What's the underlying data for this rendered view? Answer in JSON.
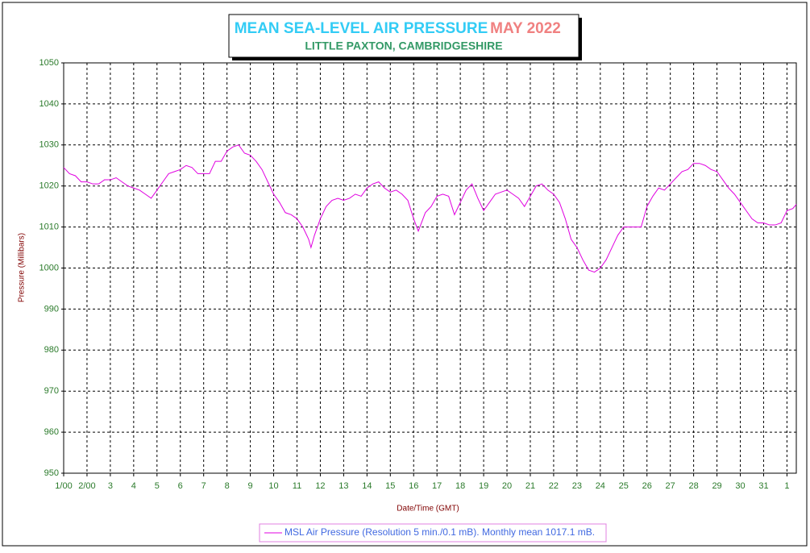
{
  "chart_data": {
    "type": "line",
    "title": "MEAN SEA-LEVEL AIR PRESSURE",
    "title_date": "MAY 2022",
    "subtitle": "LITTLE PAXTON, CAMBRIDGESHIRE",
    "x_label": "Date/Time (GMT)",
    "y_label": "Pressure (Millibars)",
    "grid": true,
    "legend": "bottom",
    "xlim": [
      0,
      31.4
    ],
    "ylim": [
      950,
      1050
    ],
    "yticks": [
      950,
      960,
      970,
      980,
      990,
      1000,
      1010,
      1020,
      1030,
      1040,
      1050
    ],
    "xticks": [
      {
        "value": 0,
        "label": "1/00"
      },
      {
        "value": 1,
        "label": "2/00"
      },
      {
        "value": 2,
        "label": "3"
      },
      {
        "value": 3,
        "label": "4"
      },
      {
        "value": 4,
        "label": "5"
      },
      {
        "value": 5,
        "label": "6"
      },
      {
        "value": 6,
        "label": "7"
      },
      {
        "value": 7,
        "label": "8"
      },
      {
        "value": 8,
        "label": "9"
      },
      {
        "value": 9,
        "label": "10"
      },
      {
        "value": 10,
        "label": "11"
      },
      {
        "value": 11,
        "label": "12"
      },
      {
        "value": 12,
        "label": "13"
      },
      {
        "value": 13,
        "label": "14"
      },
      {
        "value": 14,
        "label": "15"
      },
      {
        "value": 15,
        "label": "16"
      },
      {
        "value": 16,
        "label": "17"
      },
      {
        "value": 17,
        "label": "18"
      },
      {
        "value": 18,
        "label": "19"
      },
      {
        "value": 19,
        "label": "20"
      },
      {
        "value": 20,
        "label": "21"
      },
      {
        "value": 21,
        "label": "22"
      },
      {
        "value": 22,
        "label": "23"
      },
      {
        "value": 23,
        "label": "24"
      },
      {
        "value": 24,
        "label": "25"
      },
      {
        "value": 25,
        "label": "26"
      },
      {
        "value": 26,
        "label": "27"
      },
      {
        "value": 27,
        "label": "28"
      },
      {
        "value": 28,
        "label": "29"
      },
      {
        "value": 29,
        "label": "30"
      },
      {
        "value": 30,
        "label": "31"
      },
      {
        "value": 31,
        "label": "1"
      }
    ],
    "x": [
      0,
      0.25,
      0.5,
      0.75,
      1,
      1.25,
      1.5,
      1.75,
      2,
      2.25,
      2.5,
      2.75,
      3,
      3.25,
      3.5,
      3.75,
      4,
      4.25,
      4.5,
      4.75,
      5,
      5.25,
      5.5,
      5.75,
      6,
      6.25,
      6.5,
      6.75,
      7,
      7.25,
      7.5,
      7.75,
      8,
      8.25,
      8.5,
      8.75,
      9,
      9.25,
      9.5,
      9.75,
      10,
      10.25,
      10.5,
      10.6,
      10.75,
      11,
      11.25,
      11.5,
      11.75,
      12,
      12.25,
      12.5,
      12.75,
      13,
      13.25,
      13.5,
      13.75,
      14,
      14.25,
      14.5,
      14.75,
      15,
      15.2,
      15.5,
      15.75,
      16,
      16.25,
      16.5,
      16.75,
      17,
      17.25,
      17.5,
      17.75,
      18,
      18.25,
      18.5,
      18.75,
      19,
      19.25,
      19.5,
      19.75,
      20,
      20.25,
      20.5,
      20.75,
      21,
      21.25,
      21.5,
      21.75,
      22,
      22.25,
      22.5,
      22.75,
      23,
      23.25,
      23.5,
      23.75,
      24,
      24.25,
      24.5,
      24.75,
      25,
      25.25,
      25.5,
      25.75,
      26,
      26.25,
      26.5,
      26.75,
      27,
      27.25,
      27.5,
      27.75,
      28,
      28.25,
      28.5,
      28.75,
      29,
      29.25,
      29.5,
      29.75,
      30,
      30.25,
      30.5,
      30.75,
      31,
      31.25,
      31.4
    ],
    "series": [
      {
        "name": "MSL Air Pressure (Resolution 5 min./0.1 mB). Monthly mean 1017.1 mB.",
        "color": "#e000e0",
        "values": [
          1024.5,
          1023,
          1022.5,
          1021,
          1021,
          1020.5,
          1020.5,
          1021.5,
          1021.5,
          1022,
          1021,
          1020,
          1019.5,
          1019,
          1018,
          1017,
          1019,
          1021,
          1023,
          1023.5,
          1024,
          1025,
          1024.5,
          1023,
          1023,
          1023,
          1026,
          1026,
          1028.5,
          1029.5,
          1030,
          1028,
          1027.5,
          1026,
          1024,
          1021,
          1018,
          1016,
          1013.5,
          1013,
          1012,
          1010,
          1007,
          1005,
          1008,
          1012,
          1015,
          1016.5,
          1017,
          1016.5,
          1017,
          1018,
          1017.5,
          1019.5,
          1020.5,
          1021,
          1019.5,
          1018.5,
          1019,
          1018,
          1016.5,
          1012,
          1009,
          1013.5,
          1015,
          1017.5,
          1018,
          1017.5,
          1013,
          1016,
          1019,
          1020.5,
          1017,
          1014,
          1016,
          1018,
          1018.5,
          1019,
          1018,
          1017,
          1015,
          1017.5,
          1020,
          1020.5,
          1019,
          1018,
          1016,
          1012,
          1007,
          1005,
          1002,
          999.5,
          999,
          1000,
          1002,
          1005,
          1008,
          1010,
          1010,
          1010,
          1010,
          1015,
          1017.5,
          1019.5,
          1019,
          1020.5,
          1022,
          1023.5,
          1024,
          1025.5,
          1025.5,
          1025,
          1024,
          1023.5,
          1021.5,
          1019.5,
          1018,
          1016,
          1014,
          1012,
          1011,
          1011,
          1010.5,
          1010.5,
          1011,
          1014,
          1014.5,
          1015.5
        ]
      }
    ]
  }
}
